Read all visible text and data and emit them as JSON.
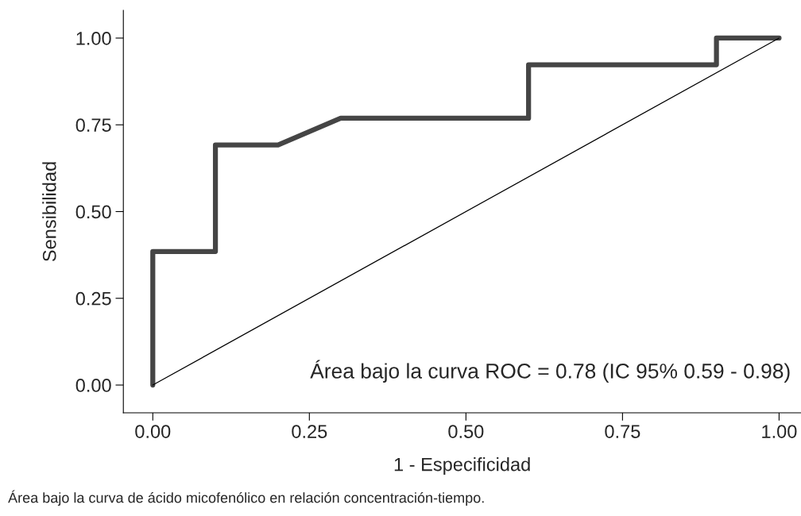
{
  "chart_data": {
    "type": "line",
    "xlabel": "1 - Especificidad",
    "ylabel": "Sensibilidad",
    "xlim": [
      -0.047,
      1.035
    ],
    "ylim": [
      -0.08,
      1.08
    ],
    "xticks": [
      {
        "value": 0,
        "label": "0.00"
      },
      {
        "value": 0.25,
        "label": "0.25"
      },
      {
        "value": 0.5,
        "label": "0.50"
      },
      {
        "value": 0.75,
        "label": "0.75"
      },
      {
        "value": 1,
        "label": "1.00"
      }
    ],
    "yticks": [
      {
        "value": 0,
        "label": "0.00"
      },
      {
        "value": 0.25,
        "label": "0.25"
      },
      {
        "value": 0.5,
        "label": "0.50"
      },
      {
        "value": 0.75,
        "label": "0.75"
      },
      {
        "value": 1,
        "label": "1.00"
      }
    ],
    "grid": false,
    "marker": "none",
    "series": [
      {
        "color": "#454545",
        "line_style": "solid",
        "x": [
          0,
          0,
          0.1,
          0.1,
          0.2,
          0.3,
          0.6,
          0.6,
          0.9,
          0.9,
          1
        ],
        "values": [
          0,
          0.385,
          0.385,
          0.692,
          0.692,
          0.769,
          0.769,
          0.923,
          0.923,
          1,
          1
        ]
      },
      {
        "color": "#000000",
        "line_style": "solid",
        "x": [
          0,
          1
        ],
        "values": [
          0,
          1
        ]
      }
    ],
    "annotations": [
      "Área bajo la curva ROC = 0.78 (IC 95% 0.59 - 0.98)",
      "Área bajo la curva de ácido micofenólico en relación concentración-tiempo."
    ]
  }
}
